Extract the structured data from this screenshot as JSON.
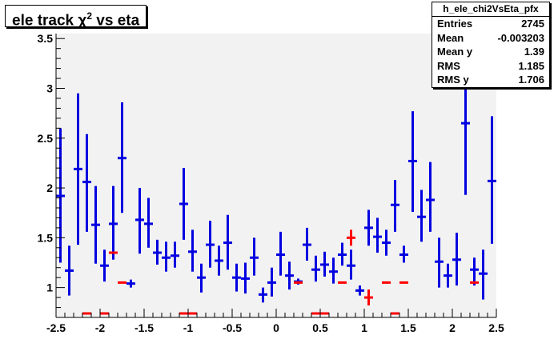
{
  "chart_data": {
    "type": "profile",
    "title_main": "ele track χ",
    "title_sup": "2",
    "title_rest": " vs eta",
    "xlim": [
      -2.5,
      2.5
    ],
    "ylim": [
      0.7,
      3.55
    ],
    "x_ticks": [
      "-2.5",
      "-2",
      "-1.5",
      "-1",
      "-0.5",
      "0",
      "0.5",
      "1",
      "1.5",
      "2",
      "2.5"
    ],
    "x_tick_values": [
      -2.5,
      -2,
      -1.5,
      -1,
      -0.5,
      0,
      0.5,
      1,
      1.5,
      2,
      2.5
    ],
    "y_ticks": [
      "1",
      "1.5",
      "2",
      "2.5",
      "3",
      "3.5"
    ],
    "y_tick_values": [
      1,
      1.5,
      2,
      2.5,
      3,
      3.5
    ],
    "grid": false,
    "bin_width": 0.1,
    "series": [
      {
        "color": "#0000e0",
        "points": [
          {
            "x": -2.45,
            "y": 1.92,
            "lo": 1.25,
            "hi": 2.6
          },
          {
            "x": -2.35,
            "y": 1.17,
            "lo": 0.92,
            "hi": 1.42
          },
          {
            "x": -2.25,
            "y": 2.19,
            "lo": 1.43,
            "hi": 2.95
          },
          {
            "x": -2.15,
            "y": 2.06,
            "lo": 1.56,
            "hi": 2.54
          },
          {
            "x": -2.05,
            "y": 1.63,
            "lo": 1.24,
            "hi": 2.02
          },
          {
            "x": -1.95,
            "y": 1.22,
            "lo": 1.06,
            "hi": 1.38
          },
          {
            "x": -1.85,
            "y": 1.64,
            "lo": 1.28,
            "hi": 2.02
          },
          {
            "x": -1.75,
            "y": 2.3,
            "lo": 1.75,
            "hi": 2.86
          },
          {
            "x": -1.65,
            "y": 1.04,
            "lo": 1.0,
            "hi": 1.08
          },
          {
            "x": -1.55,
            "y": 1.68,
            "lo": 1.34,
            "hi": 2.0
          },
          {
            "x": -1.45,
            "y": 1.64,
            "lo": 1.4,
            "hi": 1.9
          },
          {
            "x": -1.35,
            "y": 1.35,
            "lo": 1.23,
            "hi": 1.48
          },
          {
            "x": -1.25,
            "y": 1.3,
            "lo": 1.16,
            "hi": 1.46
          },
          {
            "x": -1.15,
            "y": 1.32,
            "lo": 1.2,
            "hi": 1.46
          },
          {
            "x": -1.05,
            "y": 1.84,
            "lo": 1.48,
            "hi": 2.2
          },
          {
            "x": -0.95,
            "y": 1.36,
            "lo": 1.16,
            "hi": 1.58
          },
          {
            "x": -0.85,
            "y": 1.1,
            "lo": 0.95,
            "hi": 1.24
          },
          {
            "x": -0.75,
            "y": 1.43,
            "lo": 1.2,
            "hi": 1.67
          },
          {
            "x": -0.65,
            "y": 1.27,
            "lo": 1.12,
            "hi": 1.42
          },
          {
            "x": -0.55,
            "y": 1.45,
            "lo": 1.18,
            "hi": 1.73
          },
          {
            "x": -0.45,
            "y": 1.1,
            "lo": 0.96,
            "hi": 1.24
          },
          {
            "x": -0.35,
            "y": 1.09,
            "lo": 0.94,
            "hi": 1.25
          },
          {
            "x": -0.25,
            "y": 1.3,
            "lo": 1.12,
            "hi": 1.5
          },
          {
            "x": -0.15,
            "y": 0.93,
            "lo": 0.85,
            "hi": 1.0
          },
          {
            "x": -0.05,
            "y": 1.05,
            "lo": 0.91,
            "hi": 1.2
          },
          {
            "x": 0.05,
            "y": 1.33,
            "lo": 1.12,
            "hi": 1.56
          },
          {
            "x": 0.15,
            "y": 1.12,
            "lo": 0.98,
            "hi": 1.26
          },
          {
            "x": 0.25,
            "y": 1.06,
            "lo": 1.03,
            "hi": 1.09
          },
          {
            "x": 0.35,
            "y": 1.43,
            "lo": 1.27,
            "hi": 1.6
          },
          {
            "x": 0.45,
            "y": 1.18,
            "lo": 1.06,
            "hi": 1.32
          },
          {
            "x": 0.55,
            "y": 1.23,
            "lo": 1.11,
            "hi": 1.36
          },
          {
            "x": 0.65,
            "y": 1.16,
            "lo": 1.04,
            "hi": 1.3
          },
          {
            "x": 0.75,
            "y": 1.33,
            "lo": 1.22,
            "hi": 1.45
          },
          {
            "x": 0.85,
            "y": 1.22,
            "lo": 1.08,
            "hi": 1.38
          },
          {
            "x": 0.95,
            "y": 0.97,
            "lo": 0.92,
            "hi": 1.02
          },
          {
            "x": 1.05,
            "y": 1.6,
            "lo": 1.42,
            "hi": 1.78
          },
          {
            "x": 1.15,
            "y": 1.51,
            "lo": 1.35,
            "hi": 1.7
          },
          {
            "x": 1.25,
            "y": 1.45,
            "lo": 1.32,
            "hi": 1.58
          },
          {
            "x": 1.35,
            "y": 1.83,
            "lo": 1.56,
            "hi": 2.08
          },
          {
            "x": 1.45,
            "y": 1.33,
            "lo": 1.25,
            "hi": 1.42
          },
          {
            "x": 1.55,
            "y": 2.27,
            "lo": 1.76,
            "hi": 2.77
          },
          {
            "x": 1.65,
            "y": 1.71,
            "lo": 1.46,
            "hi": 1.98
          },
          {
            "x": 1.75,
            "y": 1.88,
            "lo": 1.56,
            "hi": 2.26
          },
          {
            "x": 1.85,
            "y": 1.26,
            "lo": 1.0,
            "hi": 1.5
          },
          {
            "x": 1.95,
            "y": 1.12,
            "lo": 1.0,
            "hi": 1.24
          },
          {
            "x": 2.05,
            "y": 1.28,
            "lo": 1.02,
            "hi": 1.55
          },
          {
            "x": 2.15,
            "y": 2.65,
            "lo": 1.93,
            "hi": 3.4
          },
          {
            "x": 2.25,
            "y": 1.18,
            "lo": 1.02,
            "hi": 1.3
          },
          {
            "x": 2.35,
            "y": 1.14,
            "lo": 0.88,
            "hi": 1.38
          },
          {
            "x": 2.45,
            "y": 2.07,
            "lo": 1.44,
            "hi": 2.72
          }
        ]
      },
      {
        "color": "#ff0000",
        "points": [
          {
            "x": -2.15,
            "y": 0.74,
            "lo": 0.74,
            "hi": 0.74
          },
          {
            "x": -1.95,
            "y": 0.74,
            "lo": 0.74,
            "hi": 0.74
          },
          {
            "x": -1.85,
            "y": 1.35,
            "lo": 1.35,
            "hi": 1.35
          },
          {
            "x": -1.75,
            "y": 1.05,
            "lo": 1.05,
            "hi": 1.05
          },
          {
            "x": -1.05,
            "y": 0.74,
            "lo": 0.74,
            "hi": 0.74
          },
          {
            "x": -0.95,
            "y": 0.74,
            "lo": 0.74,
            "hi": 0.74
          },
          {
            "x": 0.25,
            "y": 1.05,
            "lo": 1.05,
            "hi": 1.05
          },
          {
            "x": 0.45,
            "y": 0.74,
            "lo": 0.74,
            "hi": 0.74
          },
          {
            "x": 0.55,
            "y": 0.74,
            "lo": 0.74,
            "hi": 0.74
          },
          {
            "x": 0.75,
            "y": 1.05,
            "lo": 1.05,
            "hi": 1.05
          },
          {
            "x": 0.85,
            "y": 1.5,
            "lo": 1.42,
            "hi": 1.58
          },
          {
            "x": 1.05,
            "y": 0.9,
            "lo": 0.82,
            "hi": 0.98
          },
          {
            "x": 1.25,
            "y": 1.05,
            "lo": 1.05,
            "hi": 1.05
          },
          {
            "x": 1.35,
            "y": 0.74,
            "lo": 0.74,
            "hi": 0.74
          },
          {
            "x": 1.45,
            "y": 1.05,
            "lo": 1.05,
            "hi": 1.05
          },
          {
            "x": 2.25,
            "y": 1.05,
            "lo": 1.05,
            "hi": 1.05
          }
        ]
      }
    ],
    "legend_placement": "top-right"
  },
  "stats": {
    "name": "h_ele_chi2VsEta_pfx",
    "rows": [
      {
        "label": "Entries",
        "value": "2745"
      },
      {
        "label": "Mean",
        "value": "-0.003203"
      },
      {
        "label": "Mean y",
        "value": "1.39"
      },
      {
        "label": "RMS",
        "value": "1.185"
      },
      {
        "label": "RMS y",
        "value": "1.706"
      }
    ]
  },
  "colors": {
    "frame_fill": "#f2f2f2",
    "axis": "#000000"
  }
}
